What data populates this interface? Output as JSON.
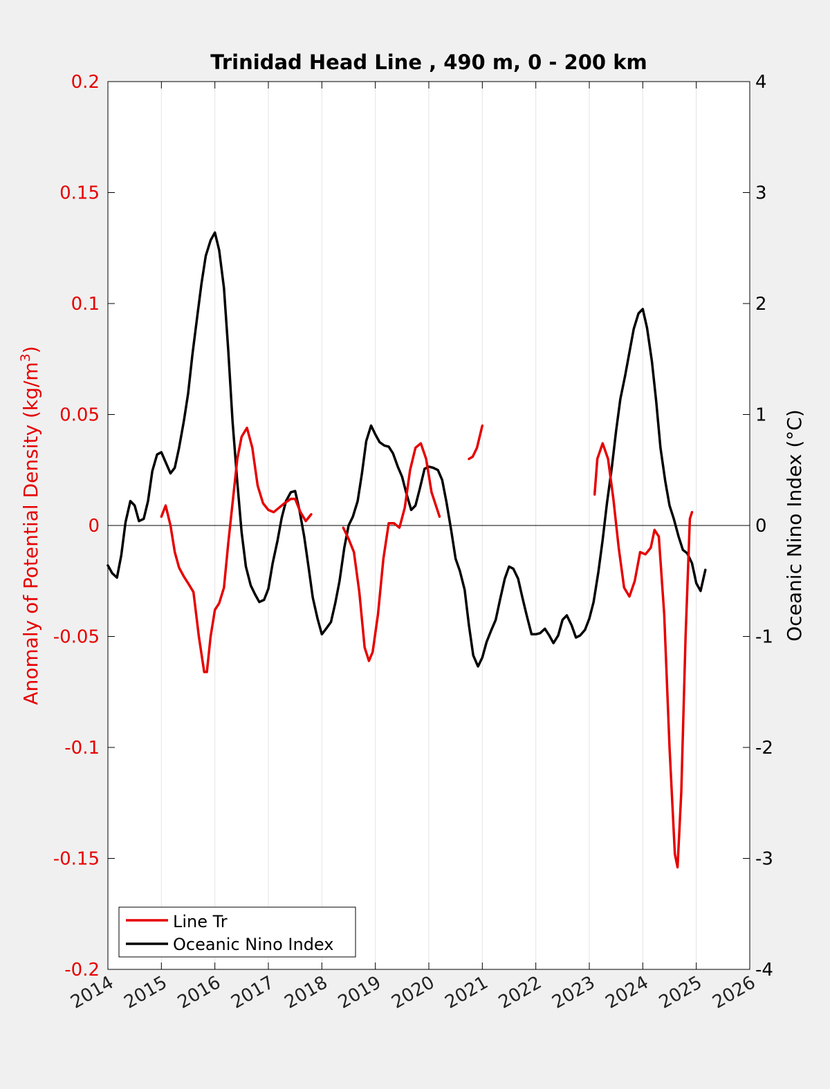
{
  "chart_data": {
    "type": "line",
    "title": "Trinidad Head Line , 490 m, 0 - 200 km",
    "ylabel_left": "Anomaly of Potential Density (kg/m",
    "ylabel_left_sup": "3",
    "ylabel_left_close": ")",
    "ylabel_right": "Oceanic Nino Index (°C)",
    "xlim": [
      2014,
      2026
    ],
    "ylim_left": [
      -0.2,
      0.2
    ],
    "ylim_right": [
      -4,
      4
    ],
    "x_ticks": [
      2014,
      2015,
      2016,
      2017,
      2018,
      2019,
      2020,
      2021,
      2022,
      2023,
      2024,
      2025,
      2026
    ],
    "x_tick_labels": [
      "2014",
      "2015",
      "2016",
      "2017",
      "2018",
      "2019",
      "2020",
      "2021",
      "2022",
      "2023",
      "2024",
      "2025",
      "2026"
    ],
    "y_left_ticks": [
      0.2,
      0.15,
      0.1,
      0.05,
      0,
      -0.05,
      -0.1,
      -0.15,
      -0.2
    ],
    "y_left_tick_labels": [
      "0.2",
      "0.15",
      "0.1",
      "0.05",
      "0",
      "-0.05",
      "-0.1",
      "-0.15",
      "-0.2"
    ],
    "y_right_ticks": [
      4,
      3,
      2,
      1,
      0,
      -1,
      -2,
      -3,
      -4
    ],
    "y_right_tick_labels": [
      "4",
      "3",
      "2",
      "1",
      "0",
      "-1",
      "-2",
      "-3",
      "-4"
    ],
    "grid": "vertical",
    "legend_placement": "bottom-left",
    "colors": {
      "line_tr": "#e60000",
      "oni": "#000000",
      "left_axis": "#e60000",
      "right_axis": "#000000",
      "background": "#f0f0f0",
      "plot_bg": "#ffffff"
    },
    "series": [
      {
        "name": "Line Tr",
        "axis": "left",
        "color": "#e60000",
        "segments": [
          [
            [
              2015.0,
              0.004
            ],
            [
              2015.08,
              0.009
            ],
            [
              2015.17,
              0.0
            ],
            [
              2015.25,
              -0.012
            ],
            [
              2015.33,
              -0.019
            ],
            [
              2015.42,
              -0.023
            ],
            [
              2015.5,
              -0.026
            ],
            [
              2015.6,
              -0.03
            ],
            [
              2015.7,
              -0.05
            ],
            [
              2015.8,
              -0.066
            ],
            [
              2015.85,
              -0.066
            ],
            [
              2015.92,
              -0.05
            ],
            [
              2016.0,
              -0.038
            ],
            [
              2016.08,
              -0.035
            ],
            [
              2016.17,
              -0.028
            ],
            [
              2016.25,
              -0.008
            ],
            [
              2016.33,
              0.01
            ],
            [
              2016.42,
              0.03
            ],
            [
              2016.5,
              0.04
            ],
            [
              2016.6,
              0.044
            ],
            [
              2016.7,
              0.035
            ],
            [
              2016.8,
              0.018
            ],
            [
              2016.9,
              0.01
            ],
            [
              2017.0,
              0.007
            ],
            [
              2017.1,
              0.006
            ],
            [
              2017.2,
              0.008
            ],
            [
              2017.3,
              0.01
            ],
            [
              2017.42,
              0.012
            ],
            [
              2017.5,
              0.012
            ],
            [
              2017.6,
              0.006
            ],
            [
              2017.7,
              0.002
            ],
            [
              2017.8,
              0.005
            ]
          ],
          [
            [
              2018.4,
              -0.001
            ],
            [
              2018.5,
              -0.006
            ],
            [
              2018.6,
              -0.012
            ],
            [
              2018.7,
              -0.03
            ],
            [
              2018.8,
              -0.055
            ],
            [
              2018.88,
              -0.061
            ],
            [
              2018.95,
              -0.057
            ],
            [
              2019.05,
              -0.04
            ],
            [
              2019.15,
              -0.015
            ],
            [
              2019.25,
              0.001
            ],
            [
              2019.35,
              0.001
            ],
            [
              2019.45,
              -0.001
            ],
            [
              2019.55,
              0.008
            ],
            [
              2019.65,
              0.025
            ],
            [
              2019.75,
              0.035
            ],
            [
              2019.85,
              0.037
            ],
            [
              2019.95,
              0.03
            ],
            [
              2020.05,
              0.015
            ],
            [
              2020.2,
              0.004
            ]
          ],
          [
            [
              2020.75,
              0.03
            ],
            [
              2020.82,
              0.031
            ],
            [
              2020.9,
              0.035
            ],
            [
              2021.0,
              0.045
            ]
          ],
          [
            [
              2023.1,
              0.014
            ],
            [
              2023.15,
              0.03
            ],
            [
              2023.25,
              0.037
            ],
            [
              2023.35,
              0.03
            ],
            [
              2023.45,
              0.012
            ],
            [
              2023.55,
              -0.01
            ],
            [
              2023.65,
              -0.028
            ],
            [
              2023.75,
              -0.032
            ],
            [
              2023.85,
              -0.025
            ],
            [
              2023.95,
              -0.012
            ],
            [
              2024.05,
              -0.013
            ],
            [
              2024.15,
              -0.01
            ],
            [
              2024.22,
              -0.002
            ],
            [
              2024.3,
              -0.005
            ],
            [
              2024.4,
              -0.04
            ],
            [
              2024.5,
              -0.1
            ],
            [
              2024.6,
              -0.148
            ],
            [
              2024.65,
              -0.154
            ],
            [
              2024.72,
              -0.12
            ],
            [
              2024.8,
              -0.05
            ],
            [
              2024.88,
              0.003
            ],
            [
              2024.92,
              0.006
            ]
          ]
        ]
      },
      {
        "name": "Oceanic Nino Index",
        "axis": "right",
        "color": "#000000",
        "segments": [
          [
            [
              2014.0,
              -0.36
            ],
            [
              2014.08,
              -0.43
            ],
            [
              2014.17,
              -0.47
            ],
            [
              2014.25,
              -0.27
            ],
            [
              2014.33,
              0.03
            ],
            [
              2014.42,
              0.22
            ],
            [
              2014.5,
              0.18
            ],
            [
              2014.58,
              0.04
            ],
            [
              2014.67,
              0.06
            ],
            [
              2014.75,
              0.22
            ],
            [
              2014.83,
              0.49
            ],
            [
              2014.92,
              0.64
            ],
            [
              2015.0,
              0.66
            ],
            [
              2015.08,
              0.57
            ],
            [
              2015.17,
              0.47
            ],
            [
              2015.25,
              0.52
            ],
            [
              2015.33,
              0.7
            ],
            [
              2015.42,
              0.94
            ],
            [
              2015.5,
              1.19
            ],
            [
              2015.58,
              1.54
            ],
            [
              2015.67,
              1.88
            ],
            [
              2015.75,
              2.18
            ],
            [
              2015.83,
              2.43
            ],
            [
              2015.92,
              2.57
            ],
            [
              2016.0,
              2.64
            ],
            [
              2016.08,
              2.48
            ],
            [
              2016.17,
              2.14
            ],
            [
              2016.25,
              1.58
            ],
            [
              2016.33,
              0.94
            ],
            [
              2016.42,
              0.39
            ],
            [
              2016.5,
              -0.06
            ],
            [
              2016.58,
              -0.37
            ],
            [
              2016.67,
              -0.54
            ],
            [
              2016.75,
              -0.62
            ],
            [
              2016.83,
              -0.69
            ],
            [
              2016.92,
              -0.67
            ],
            [
              2017.0,
              -0.57
            ],
            [
              2017.08,
              -0.34
            ],
            [
              2017.17,
              -0.14
            ],
            [
              2017.25,
              0.07
            ],
            [
              2017.33,
              0.22
            ],
            [
              2017.42,
              0.3
            ],
            [
              2017.5,
              0.31
            ],
            [
              2017.58,
              0.14
            ],
            [
              2017.67,
              -0.1
            ],
            [
              2017.75,
              -0.37
            ],
            [
              2017.83,
              -0.65
            ],
            [
              2017.92,
              -0.84
            ],
            [
              2018.0,
              -0.98
            ],
            [
              2018.08,
              -0.93
            ],
            [
              2018.17,
              -0.87
            ],
            [
              2018.25,
              -0.7
            ],
            [
              2018.33,
              -0.5
            ],
            [
              2018.42,
              -0.2
            ],
            [
              2018.5,
              0.0
            ],
            [
              2018.58,
              0.08
            ],
            [
              2018.67,
              0.22
            ],
            [
              2018.75,
              0.47
            ],
            [
              2018.83,
              0.76
            ],
            [
              2018.92,
              0.9
            ],
            [
              2019.0,
              0.82
            ],
            [
              2019.08,
              0.75
            ],
            [
              2019.17,
              0.72
            ],
            [
              2019.25,
              0.71
            ],
            [
              2019.33,
              0.65
            ],
            [
              2019.42,
              0.53
            ],
            [
              2019.5,
              0.44
            ],
            [
              2019.58,
              0.29
            ],
            [
              2019.67,
              0.14
            ],
            [
              2019.75,
              0.18
            ],
            [
              2019.83,
              0.33
            ],
            [
              2019.92,
              0.51
            ],
            [
              2020.0,
              0.53
            ],
            [
              2020.08,
              0.52
            ],
            [
              2020.17,
              0.5
            ],
            [
              2020.25,
              0.41
            ],
            [
              2020.33,
              0.21
            ],
            [
              2020.42,
              -0.05
            ],
            [
              2020.5,
              -0.3
            ],
            [
              2020.58,
              -0.41
            ],
            [
              2020.67,
              -0.58
            ],
            [
              2020.75,
              -0.9
            ],
            [
              2020.83,
              -1.17
            ],
            [
              2020.92,
              -1.27
            ],
            [
              2021.0,
              -1.19
            ],
            [
              2021.08,
              -1.05
            ],
            [
              2021.17,
              -0.94
            ],
            [
              2021.25,
              -0.85
            ],
            [
              2021.33,
              -0.67
            ],
            [
              2021.42,
              -0.48
            ],
            [
              2021.5,
              -0.37
            ],
            [
              2021.58,
              -0.39
            ],
            [
              2021.67,
              -0.48
            ],
            [
              2021.75,
              -0.65
            ],
            [
              2021.83,
              -0.81
            ],
            [
              2021.92,
              -0.98
            ],
            [
              2022.0,
              -0.98
            ],
            [
              2022.08,
              -0.97
            ],
            [
              2022.17,
              -0.93
            ],
            [
              2022.25,
              -0.99
            ],
            [
              2022.33,
              -1.06
            ],
            [
              2022.42,
              -0.99
            ],
            [
              2022.5,
              -0.85
            ],
            [
              2022.58,
              -0.81
            ],
            [
              2022.67,
              -0.9
            ],
            [
              2022.75,
              -1.01
            ],
            [
              2022.83,
              -0.99
            ],
            [
              2022.92,
              -0.94
            ],
            [
              2023.0,
              -0.84
            ],
            [
              2023.08,
              -0.69
            ],
            [
              2023.17,
              -0.42
            ],
            [
              2023.25,
              -0.13
            ],
            [
              2023.33,
              0.2
            ],
            [
              2023.42,
              0.52
            ],
            [
              2023.5,
              0.85
            ],
            [
              2023.58,
              1.14
            ],
            [
              2023.67,
              1.35
            ],
            [
              2023.75,
              1.56
            ],
            [
              2023.83,
              1.77
            ],
            [
              2023.92,
              1.91
            ],
            [
              2024.0,
              1.95
            ],
            [
              2024.08,
              1.78
            ],
            [
              2024.17,
              1.48
            ],
            [
              2024.25,
              1.12
            ],
            [
              2024.33,
              0.7
            ],
            [
              2024.42,
              0.4
            ],
            [
              2024.5,
              0.18
            ],
            [
              2024.58,
              0.06
            ],
            [
              2024.67,
              -0.1
            ],
            [
              2024.75,
              -0.22
            ],
            [
              2024.83,
              -0.25
            ],
            [
              2024.92,
              -0.34
            ],
            [
              2025.0,
              -0.52
            ],
            [
              2025.08,
              -0.59
            ],
            [
              2025.17,
              -0.4
            ]
          ]
        ]
      }
    ]
  },
  "legend": {
    "items": [
      {
        "label": "Line Tr",
        "color": "#e60000"
      },
      {
        "label": "Oceanic Nino Index",
        "color": "#000000"
      }
    ]
  }
}
